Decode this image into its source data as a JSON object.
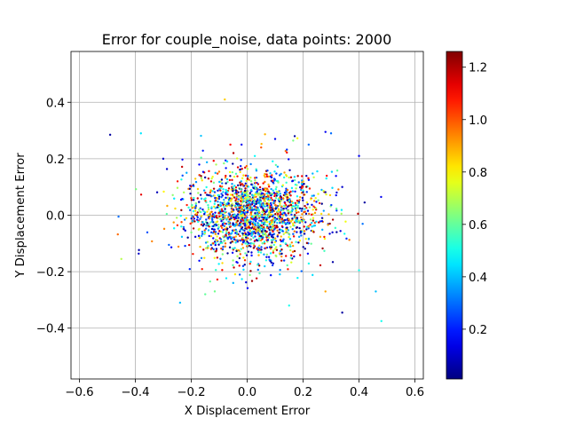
{
  "chart_data": {
    "type": "scatter",
    "title": "Error for couple_noise, data points: 2000",
    "xlabel": "X Displacement Error",
    "ylabel": "Y Displacement Error",
    "xlim": [
      -0.63,
      0.63
    ],
    "ylim": [
      -0.58,
      0.58
    ],
    "xticks": [
      -0.6,
      -0.4,
      -0.2,
      0.0,
      0.2,
      0.4,
      0.6
    ],
    "xtick_labels": [
      "−0.6",
      "−0.4",
      "−0.2",
      "0.0",
      "0.2",
      "0.4",
      "0.6"
    ],
    "yticks": [
      -0.4,
      -0.2,
      0.0,
      0.2,
      0.4
    ],
    "ytick_labels": [
      "−0.4",
      "−0.2",
      "0.0",
      "0.2",
      "0.4"
    ],
    "grid": true,
    "colorbar": {
      "colormap": "jet",
      "range": [
        0.01,
        1.26
      ],
      "ticks": [
        0.2,
        0.4,
        0.6,
        0.8,
        1.0,
        1.2
      ],
      "tick_labels": [
        "0.2",
        "0.4",
        "0.6",
        "0.8",
        "1.0",
        "1.2"
      ]
    },
    "n_points": 2000,
    "distribution": {
      "x_mean": 0.02,
      "x_std": 0.12,
      "y_mean": 0.0,
      "y_std": 0.08,
      "color_range": [
        0.01,
        1.26
      ]
    },
    "highlighted_points": [
      {
        "x": -0.49,
        "y": 0.285,
        "c": 0.05
      },
      {
        "x": -0.46,
        "y": -0.005,
        "c": 0.3
      },
      {
        "x": -0.45,
        "y": -0.155,
        "c": 0.7
      },
      {
        "x": -0.38,
        "y": 0.29,
        "c": 0.45
      },
      {
        "x": -0.08,
        "y": 0.41,
        "c": 0.85
      },
      {
        "x": -0.24,
        "y": -0.31,
        "c": 0.4
      },
      {
        "x": 0.28,
        "y": 0.295,
        "c": 0.15
      },
      {
        "x": 0.3,
        "y": 0.29,
        "c": 0.3
      },
      {
        "x": 0.34,
        "y": -0.345,
        "c": 0.05
      },
      {
        "x": 0.4,
        "y": 0.21,
        "c": 0.15
      },
      {
        "x": 0.42,
        "y": 0.045,
        "c": 0.05
      },
      {
        "x": 0.46,
        "y": -0.27,
        "c": 0.4
      },
      {
        "x": 0.48,
        "y": -0.375,
        "c": 0.5
      },
      {
        "x": 0.4,
        "y": -0.195,
        "c": 0.5
      },
      {
        "x": 0.34,
        "y": 0.1,
        "c": 0.1
      },
      {
        "x": 0.28,
        "y": -0.27,
        "c": 0.9
      },
      {
        "x": 0.15,
        "y": -0.32,
        "c": 0.5
      },
      {
        "x": 0.17,
        "y": 0.28,
        "c": 0.05
      },
      {
        "x": 0.1,
        "y": 0.27,
        "c": 0.15
      },
      {
        "x": -0.02,
        "y": 0.25,
        "c": 0.15
      },
      {
        "x": -0.06,
        "y": 0.25,
        "c": 1.1
      },
      {
        "x": 0.05,
        "y": 0.24,
        "c": 1.0
      },
      {
        "x": -0.3,
        "y": 0.2,
        "c": 0.1
      },
      {
        "x": 0.22,
        "y": 0.25,
        "c": 0.3
      },
      {
        "x": -0.15,
        "y": -0.28,
        "c": 0.6
      },
      {
        "x": 0.32,
        "y": -0.06,
        "c": 0.05
      }
    ]
  }
}
